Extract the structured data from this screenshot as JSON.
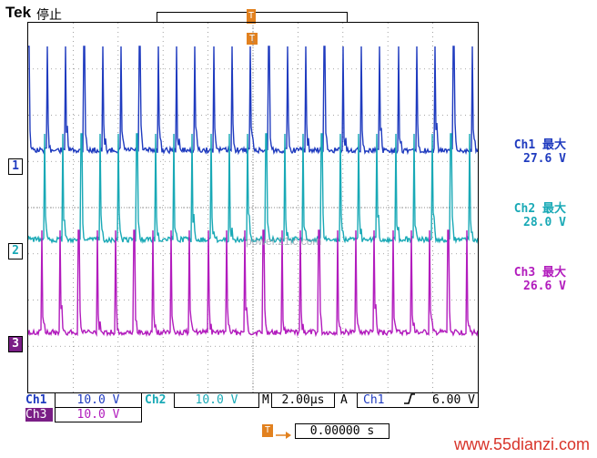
{
  "header": {
    "brand": "Tek",
    "status": "停止"
  },
  "channels": [
    {
      "marker": "1",
      "color": "#1f3bbf"
    },
    {
      "marker": "2",
      "color": "#19a9b6"
    },
    {
      "marker": "3",
      "color": "#b21cbd"
    }
  ],
  "measurements": [
    {
      "label": "Ch1 最大",
      "value": "27.6 V"
    },
    {
      "label": "Ch2 最大",
      "value": "28.0 V"
    },
    {
      "label": "Ch3 最大",
      "value": "26.6 V"
    }
  ],
  "status_bar": {
    "ch1_label": "Ch1",
    "ch1_scale": "10.0 V",
    "ch2_label": "Ch2",
    "ch2_scale": "10.0 V",
    "time_label": "M",
    "time_scale": "2.00µs",
    "trigger_mode": "A",
    "trigger_source": "Ch1",
    "trigger_slope_icon": "rising-edge-icon",
    "trigger_level": "6.00 V",
    "ch3_label": "Ch3",
    "ch3_scale": "10.0 V"
  },
  "trigger_position": {
    "marker": "T",
    "value": "0.00000 s"
  },
  "watermark": "power.21ic.com",
  "footer": {
    "site": "www.55dianzi.com"
  },
  "colors": {
    "ch1": "#1f3bbf",
    "ch2": "#19a9b6",
    "ch3": "#b21cbd",
    "trigger": "#e2811f",
    "grid": "#8a8a8a"
  }
}
